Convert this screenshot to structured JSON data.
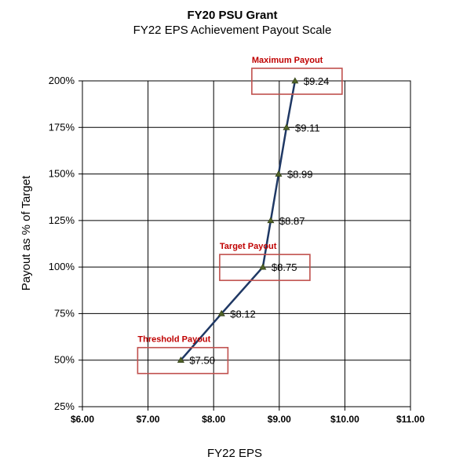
{
  "chart_data": {
    "type": "line",
    "title": "FY20 PSU Grant",
    "subtitle": "FY22 EPS Achievement Payout Scale",
    "xlabel": "FY22 EPS",
    "ylabel": "Payout as % of Target",
    "xlim": [
      6.0,
      11.0
    ],
    "ylim": [
      25,
      200
    ],
    "x_ticks": [
      6,
      7,
      8,
      9,
      10,
      11
    ],
    "x_tick_labels": [
      "$6.00",
      "$7.00",
      "$8.00",
      "$9.00",
      "$10.00",
      "$11.00"
    ],
    "y_ticks": [
      25,
      50,
      75,
      100,
      125,
      150,
      175,
      200
    ],
    "y_tick_labels": [
      "25%",
      "50%",
      "75%",
      "100%",
      "125%",
      "150%",
      "175%",
      "200%"
    ],
    "grid": true,
    "series": [
      {
        "points": [
          {
            "x": 7.5,
            "y": 50,
            "label": "$7.50"
          },
          {
            "x": 8.12,
            "y": 75,
            "label": "$8.12"
          },
          {
            "x": 8.75,
            "y": 100,
            "label": "$8.75"
          },
          {
            "x": 8.87,
            "y": 125,
            "label": "$8.87"
          },
          {
            "x": 8.99,
            "y": 150,
            "label": "$8.99"
          },
          {
            "x": 9.11,
            "y": 175,
            "label": "$9.11"
          },
          {
            "x": 9.24,
            "y": 200,
            "label": "$9.24"
          }
        ],
        "color": "#1f3864",
        "marker_color": "#4f6228"
      }
    ],
    "annotations": [
      {
        "text": "Maximum Payout",
        "x": 9.24,
        "y": 200
      },
      {
        "text": "Target Payout",
        "x": 8.75,
        "y": 100
      },
      {
        "text": "Threshold Payout",
        "x": 7.5,
        "y": 50
      }
    ],
    "annotation_color": "#c00000",
    "box_color": "#c0504d"
  }
}
